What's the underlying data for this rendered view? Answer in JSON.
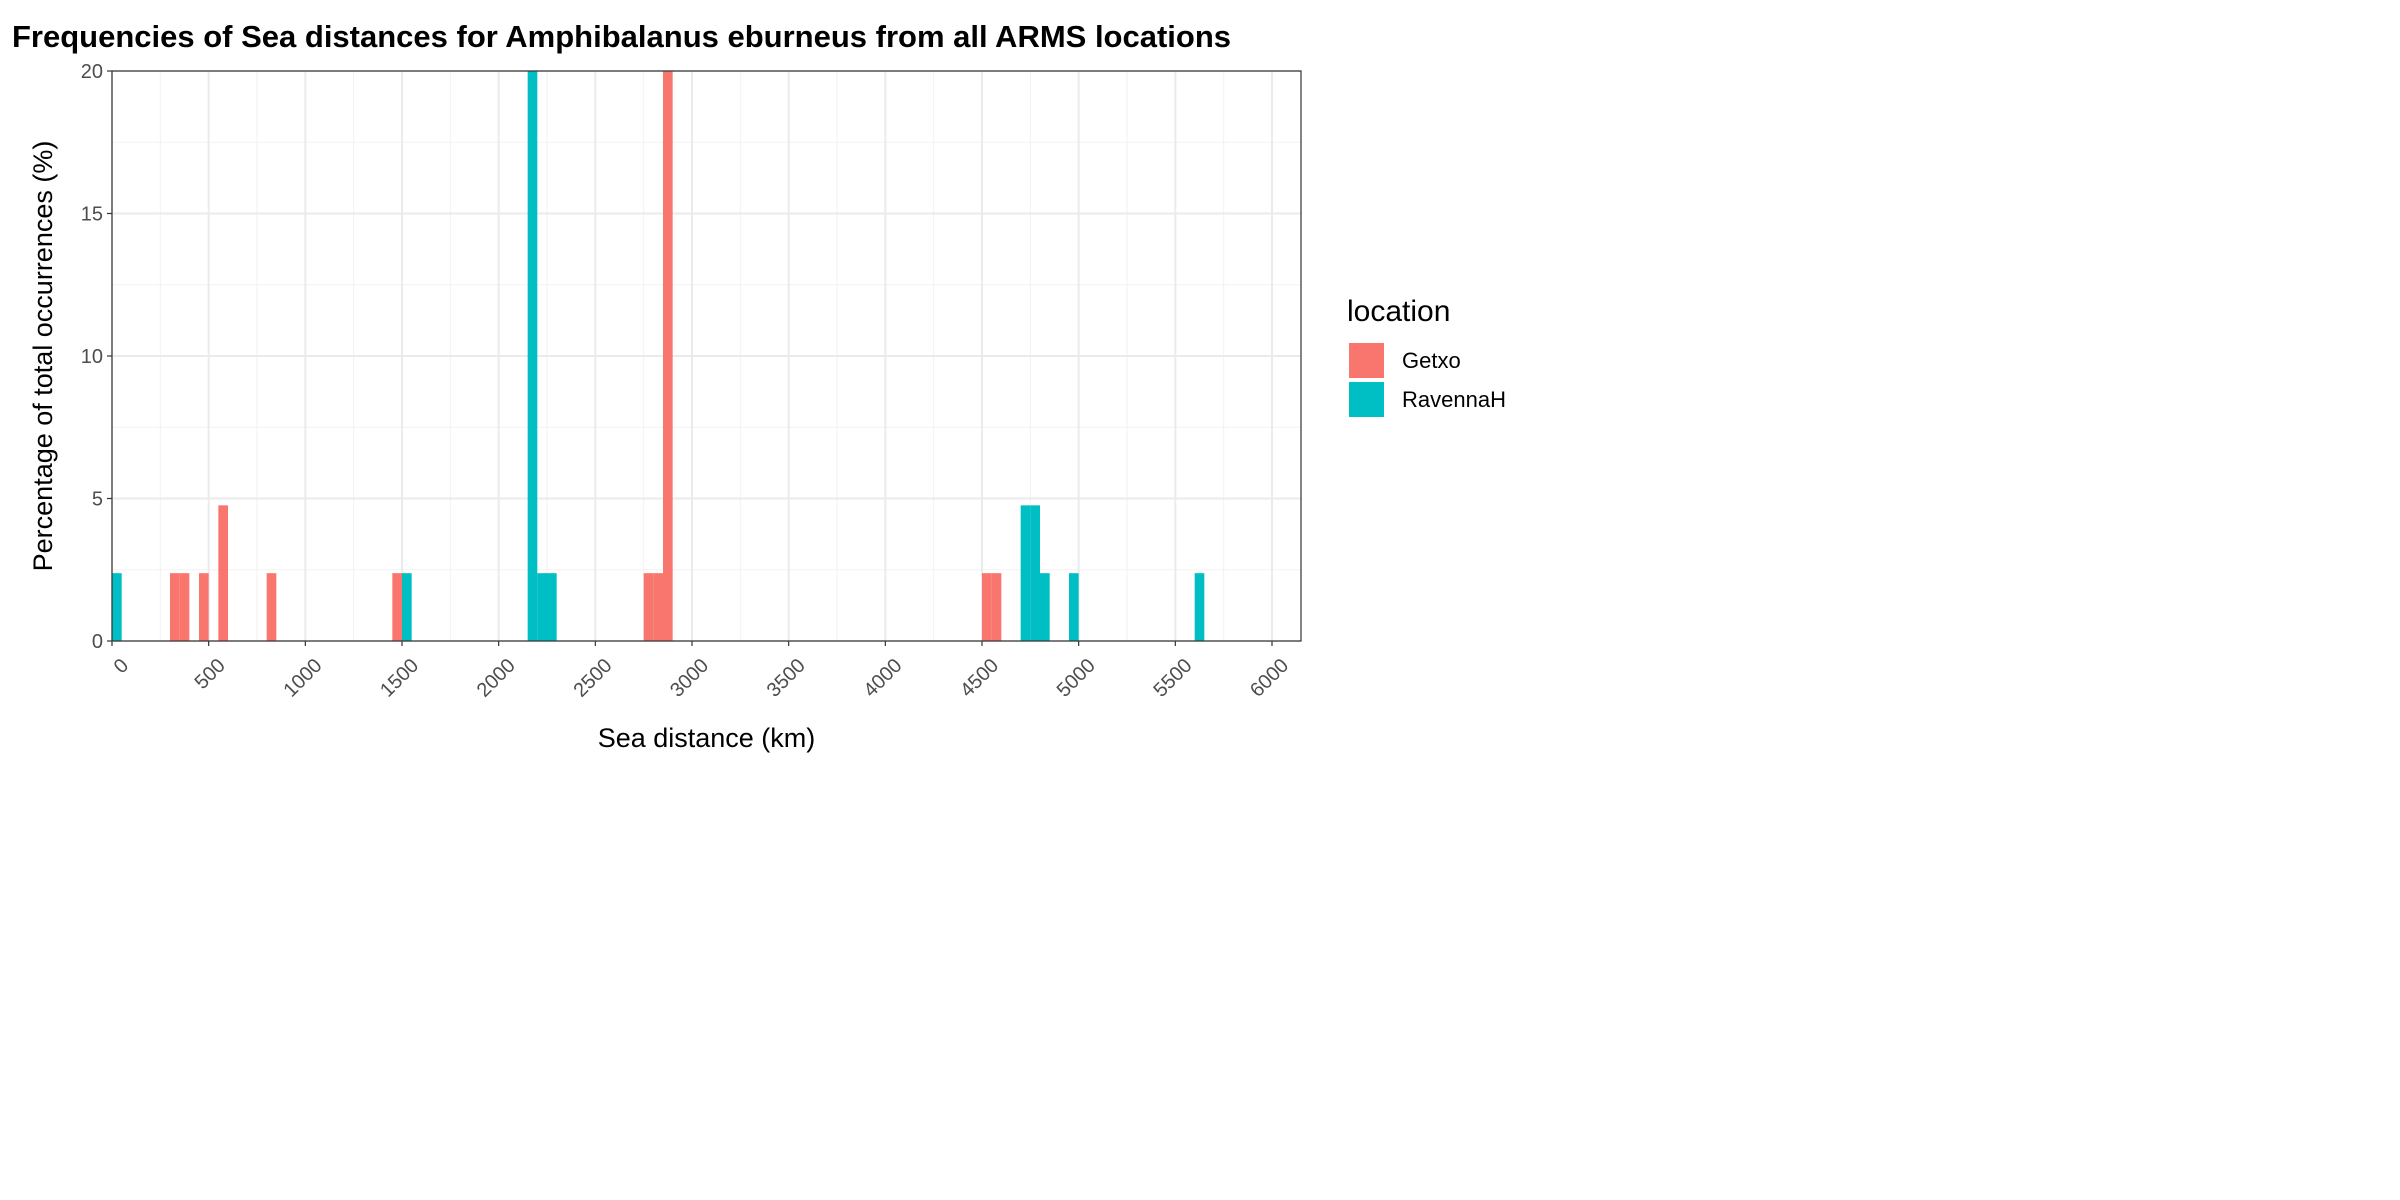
{
  "chart_data": {
    "type": "bar",
    "title": "Frequencies of Sea distances for Amphibalanus eburneus from all ARMS locations",
    "xlabel": "Sea distance (km)",
    "ylabel": "Percentage of total occurrences (%)",
    "xlim": [
      0,
      6150
    ],
    "ylim": [
      0,
      20
    ],
    "x_ticks": [
      "0",
      "500",
      "1000",
      "1500",
      "2000",
      "2500",
      "3000",
      "3500",
      "4000",
      "4500",
      "5000",
      "5500",
      "6000"
    ],
    "y_ticks": [
      "0",
      "5",
      "10",
      "15",
      "20"
    ],
    "grid": true,
    "bin_width": 50,
    "legend": {
      "title": "location",
      "position": "right"
    },
    "series": [
      {
        "name": "Getxo",
        "color": "#F8766D",
        "bins": [
          {
            "x": 300,
            "value": 2.38
          },
          {
            "x": 350,
            "value": 2.38
          },
          {
            "x": 450,
            "value": 2.38
          },
          {
            "x": 550,
            "value": 4.76
          },
          {
            "x": 800,
            "value": 2.38
          },
          {
            "x": 1450,
            "value": 2.38
          },
          {
            "x": 2750,
            "value": 2.38
          },
          {
            "x": 2800,
            "value": 2.38
          },
          {
            "x": 2850,
            "value": 20.0
          },
          {
            "x": 4500,
            "value": 2.38
          },
          {
            "x": 4550,
            "value": 2.38
          }
        ]
      },
      {
        "name": "RavennaH",
        "color": "#00BFC4",
        "bins": [
          {
            "x": 0,
            "value": 2.38
          },
          {
            "x": 1500,
            "value": 2.38
          },
          {
            "x": 2150,
            "value": 20.0
          },
          {
            "x": 2200,
            "value": 2.38
          },
          {
            "x": 2250,
            "value": 2.38
          },
          {
            "x": 4700,
            "value": 4.76
          },
          {
            "x": 4750,
            "value": 4.76
          },
          {
            "x": 4800,
            "value": 2.38
          },
          {
            "x": 4950,
            "value": 2.38
          },
          {
            "x": 5600,
            "value": 2.38
          }
        ]
      }
    ]
  }
}
